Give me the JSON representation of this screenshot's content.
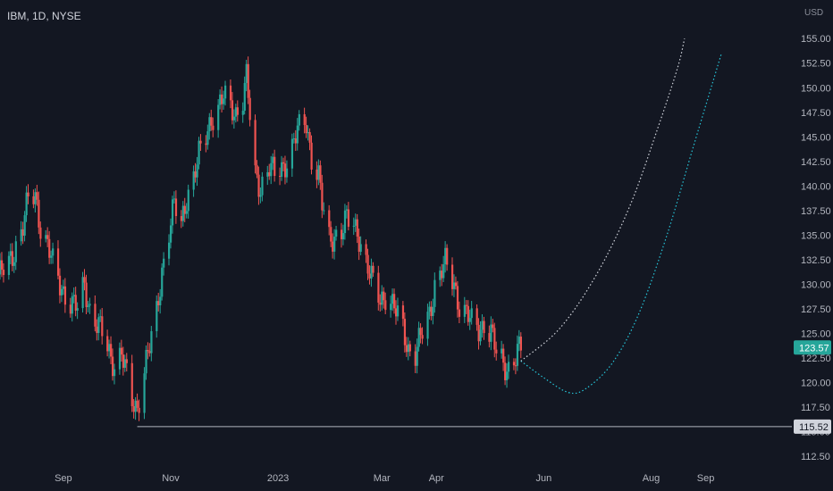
{
  "chart_data": {
    "type": "candlestick",
    "title": "IBM, 1D, NYSE",
    "currency": "USD",
    "colors": {
      "background": "#131722",
      "up": "#26a69a",
      "down": "#ef5350",
      "projection_cyan": "#26c6da",
      "projection_white": "#d1d4dc",
      "support_line": "#b2b5be",
      "text": "#b2b5be"
    },
    "y_ticks": [
      "155.00",
      "152.50",
      "150.00",
      "147.50",
      "145.00",
      "142.50",
      "140.00",
      "137.50",
      "135.00",
      "132.50",
      "130.00",
      "127.50",
      "125.00",
      "122.50",
      "120.00",
      "117.50",
      "115.00",
      "112.50"
    ],
    "y_range": [
      111.7,
      156.2
    ],
    "x_ticks": [
      "Sep",
      "Nov",
      "2023",
      "Mar",
      "Apr",
      "Jun",
      "Aug",
      "Sep"
    ],
    "x_tick_dates": [
      "2022-09-01",
      "2022-11-01",
      "2023-01-01",
      "2023-03-01",
      "2023-04-01",
      "2023-06-01",
      "2023-08-01",
      "2023-09-01"
    ],
    "x_range": [
      "2022-07-27",
      "2023-10-20"
    ],
    "last_price": "123.57",
    "support_price": "115.52",
    "support_line": {
      "from": "2022-10-13",
      "to": "2023-10-20",
      "y": 115.52
    },
    "price_series": [
      [
        "2022-07-27",
        131
      ],
      [
        "2022-08-01",
        132
      ],
      [
        "2022-08-05",
        134
      ],
      [
        "2022-08-09",
        136
      ],
      [
        "2022-08-12",
        138.5
      ],
      [
        "2022-08-16",
        139
      ],
      [
        "2022-08-19",
        136
      ],
      [
        "2022-08-23",
        134
      ],
      [
        "2022-08-26",
        132
      ],
      [
        "2022-08-30",
        130
      ],
      [
        "2022-09-02",
        129
      ],
      [
        "2022-09-06",
        128
      ],
      [
        "2022-09-09",
        127.5
      ],
      [
        "2022-09-13",
        130
      ],
      [
        "2022-09-16",
        127.5
      ],
      [
        "2022-09-20",
        126
      ],
      [
        "2022-09-23",
        125
      ],
      [
        "2022-09-27",
        123
      ],
      [
        "2022-09-30",
        122
      ],
      [
        "2022-10-04",
        123
      ],
      [
        "2022-10-07",
        120.5
      ],
      [
        "2022-10-10",
        118
      ],
      [
        "2022-10-13",
        117.5
      ],
      [
        "2022-10-17",
        121.5
      ],
      [
        "2022-10-20",
        123.5
      ],
      [
        "2022-10-24",
        127
      ],
      [
        "2022-10-27",
        131.5
      ],
      [
        "2022-10-31",
        135.5
      ],
      [
        "2022-11-03",
        138
      ],
      [
        "2022-11-07",
        136
      ],
      [
        "2022-11-10",
        139
      ],
      [
        "2022-11-14",
        141
      ],
      [
        "2022-11-17",
        143
      ],
      [
        "2022-11-21",
        145
      ],
      [
        "2022-11-24",
        147
      ],
      [
        "2022-11-28",
        148
      ],
      [
        "2022-12-01",
        149
      ],
      [
        "2022-12-05",
        148
      ],
      [
        "2022-12-08",
        147.5
      ],
      [
        "2022-12-12",
        149
      ],
      [
        "2022-12-14",
        151
      ],
      [
        "2022-12-16",
        147
      ],
      [
        "2022-12-19",
        141
      ],
      [
        "2022-12-22",
        140
      ],
      [
        "2022-12-27",
        142
      ],
      [
        "2022-12-30",
        141
      ],
      [
        "2023-01-04",
        142
      ],
      [
        "2023-01-09",
        144
      ],
      [
        "2023-01-12",
        145.5
      ],
      [
        "2023-01-17",
        146.5
      ],
      [
        "2023-01-20",
        143
      ],
      [
        "2023-01-24",
        141
      ],
      [
        "2023-01-26",
        138
      ],
      [
        "2023-01-30",
        134.5
      ],
      [
        "2023-02-02",
        135
      ],
      [
        "2023-02-06",
        135.5
      ],
      [
        "2023-02-09",
        136.5
      ],
      [
        "2023-02-13",
        136
      ],
      [
        "2023-02-16",
        135
      ],
      [
        "2023-02-21",
        131.5
      ],
      [
        "2023-02-24",
        130
      ],
      [
        "2023-02-28",
        128.5
      ],
      [
        "2023-03-03",
        129
      ],
      [
        "2023-03-08",
        127.5
      ],
      [
        "2023-03-13",
        125.5
      ],
      [
        "2023-03-16",
        123.5
      ],
      [
        "2023-03-20",
        123
      ],
      [
        "2023-03-23",
        124.5
      ],
      [
        "2023-03-28",
        127
      ],
      [
        "2023-03-31",
        130
      ],
      [
        "2023-04-04",
        131.5
      ],
      [
        "2023-04-06",
        132
      ],
      [
        "2023-04-11",
        130
      ],
      [
        "2023-04-14",
        128
      ],
      [
        "2023-04-18",
        127
      ],
      [
        "2023-04-21",
        126
      ],
      [
        "2023-04-25",
        125.5
      ],
      [
        "2023-04-28",
        126
      ],
      [
        "2023-05-02",
        125
      ],
      [
        "2023-05-05",
        123
      ],
      [
        "2023-05-09",
        122
      ],
      [
        "2023-05-12",
        121.5
      ],
      [
        "2023-05-16",
        122.5
      ],
      [
        "2023-05-19",
        123.6
      ]
    ],
    "projections": [
      {
        "color": "cyan",
        "points": [
          [
            "2023-05-19",
            122.2
          ],
          [
            "2023-06-01",
            120.5
          ],
          [
            "2023-06-15",
            119
          ],
          [
            "2023-06-25",
            119.4
          ],
          [
            "2023-07-10",
            122
          ],
          [
            "2023-07-25",
            127
          ],
          [
            "2023-08-10",
            135
          ],
          [
            "2023-08-25",
            144
          ],
          [
            "2023-09-10",
            153.5
          ]
        ]
      },
      {
        "color": "white",
        "points": [
          [
            "2023-05-19",
            122.2
          ],
          [
            "2023-06-10",
            125.5
          ],
          [
            "2023-07-01",
            131
          ],
          [
            "2023-07-20",
            138
          ],
          [
            "2023-08-05",
            146
          ],
          [
            "2023-08-16",
            152
          ],
          [
            "2023-08-20",
            155
          ]
        ]
      }
    ]
  }
}
